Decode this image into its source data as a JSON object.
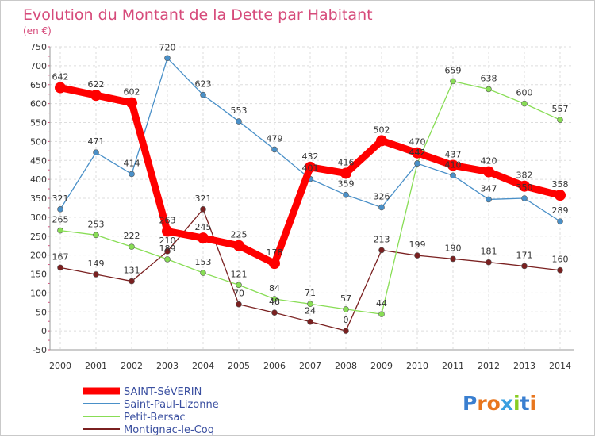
{
  "chart_data": {
    "type": "line",
    "title": "Evolution du Montant de la Dette par Habitant",
    "subtitle": "(en €)",
    "x": [
      "2000",
      "2001",
      "2002",
      "2003",
      "2004",
      "2005",
      "2006",
      "2007",
      "2008",
      "2009",
      "2010",
      "2011",
      "2012",
      "2013",
      "2014"
    ],
    "yticks": [
      -50,
      0,
      50,
      100,
      150,
      200,
      250,
      300,
      350,
      400,
      450,
      500,
      550,
      600,
      650,
      700,
      750
    ],
    "ylim": [
      -50,
      750
    ],
    "grid": true,
    "legend_position": "bottom-left",
    "series": [
      {
        "name": "SAINT-SéVERIN",
        "color": "#ff0000",
        "values": [
          642,
          622,
          602,
          263,
          245,
          225,
          178,
          432,
          416,
          502,
          470,
          437,
          420,
          382,
          358
        ]
      },
      {
        "name": "Saint-Paul-Lizonne",
        "color": "#4a90c8",
        "values": [
          321,
          471,
          414,
          720,
          623,
          553,
          479,
          401,
          359,
          326,
          442,
          410,
          347,
          350,
          289
        ]
      },
      {
        "name": "Petit-Bersac",
        "color": "#88dd55",
        "values": [
          265,
          253,
          222,
          189,
          153,
          121,
          84,
          71,
          57,
          44,
          442,
          659,
          638,
          600,
          557
        ]
      },
      {
        "name": "Montignac-le-Coq",
        "color": "#7a2020",
        "values": [
          167,
          149,
          131,
          210,
          321,
          70,
          48,
          24,
          0,
          213,
          199,
          190,
          181,
          171,
          160
        ]
      }
    ],
    "data_labels": [
      [
        "642",
        "622",
        "602",
        "263",
        "245",
        "225",
        "178",
        "432",
        "416",
        "502",
        "470",
        "437",
        "420",
        "382",
        "358"
      ],
      [
        "321",
        "471",
        "414",
        "720",
        "623",
        "553",
        "479",
        "401",
        "359",
        "326",
        "442",
        "410",
        "347",
        "350",
        "289"
      ],
      [
        "265",
        "253",
        "222",
        "189",
        "153",
        "121",
        "84",
        "71",
        "57",
        "44",
        "442",
        "659",
        "638",
        "600",
        "557"
      ],
      [
        "167",
        "149",
        "131",
        "210",
        "321",
        "70",
        "48",
        "24",
        "0",
        "213",
        "199",
        "190",
        "181",
        "171",
        "160"
      ]
    ]
  },
  "logo": {
    "text": "Proxiti"
  }
}
